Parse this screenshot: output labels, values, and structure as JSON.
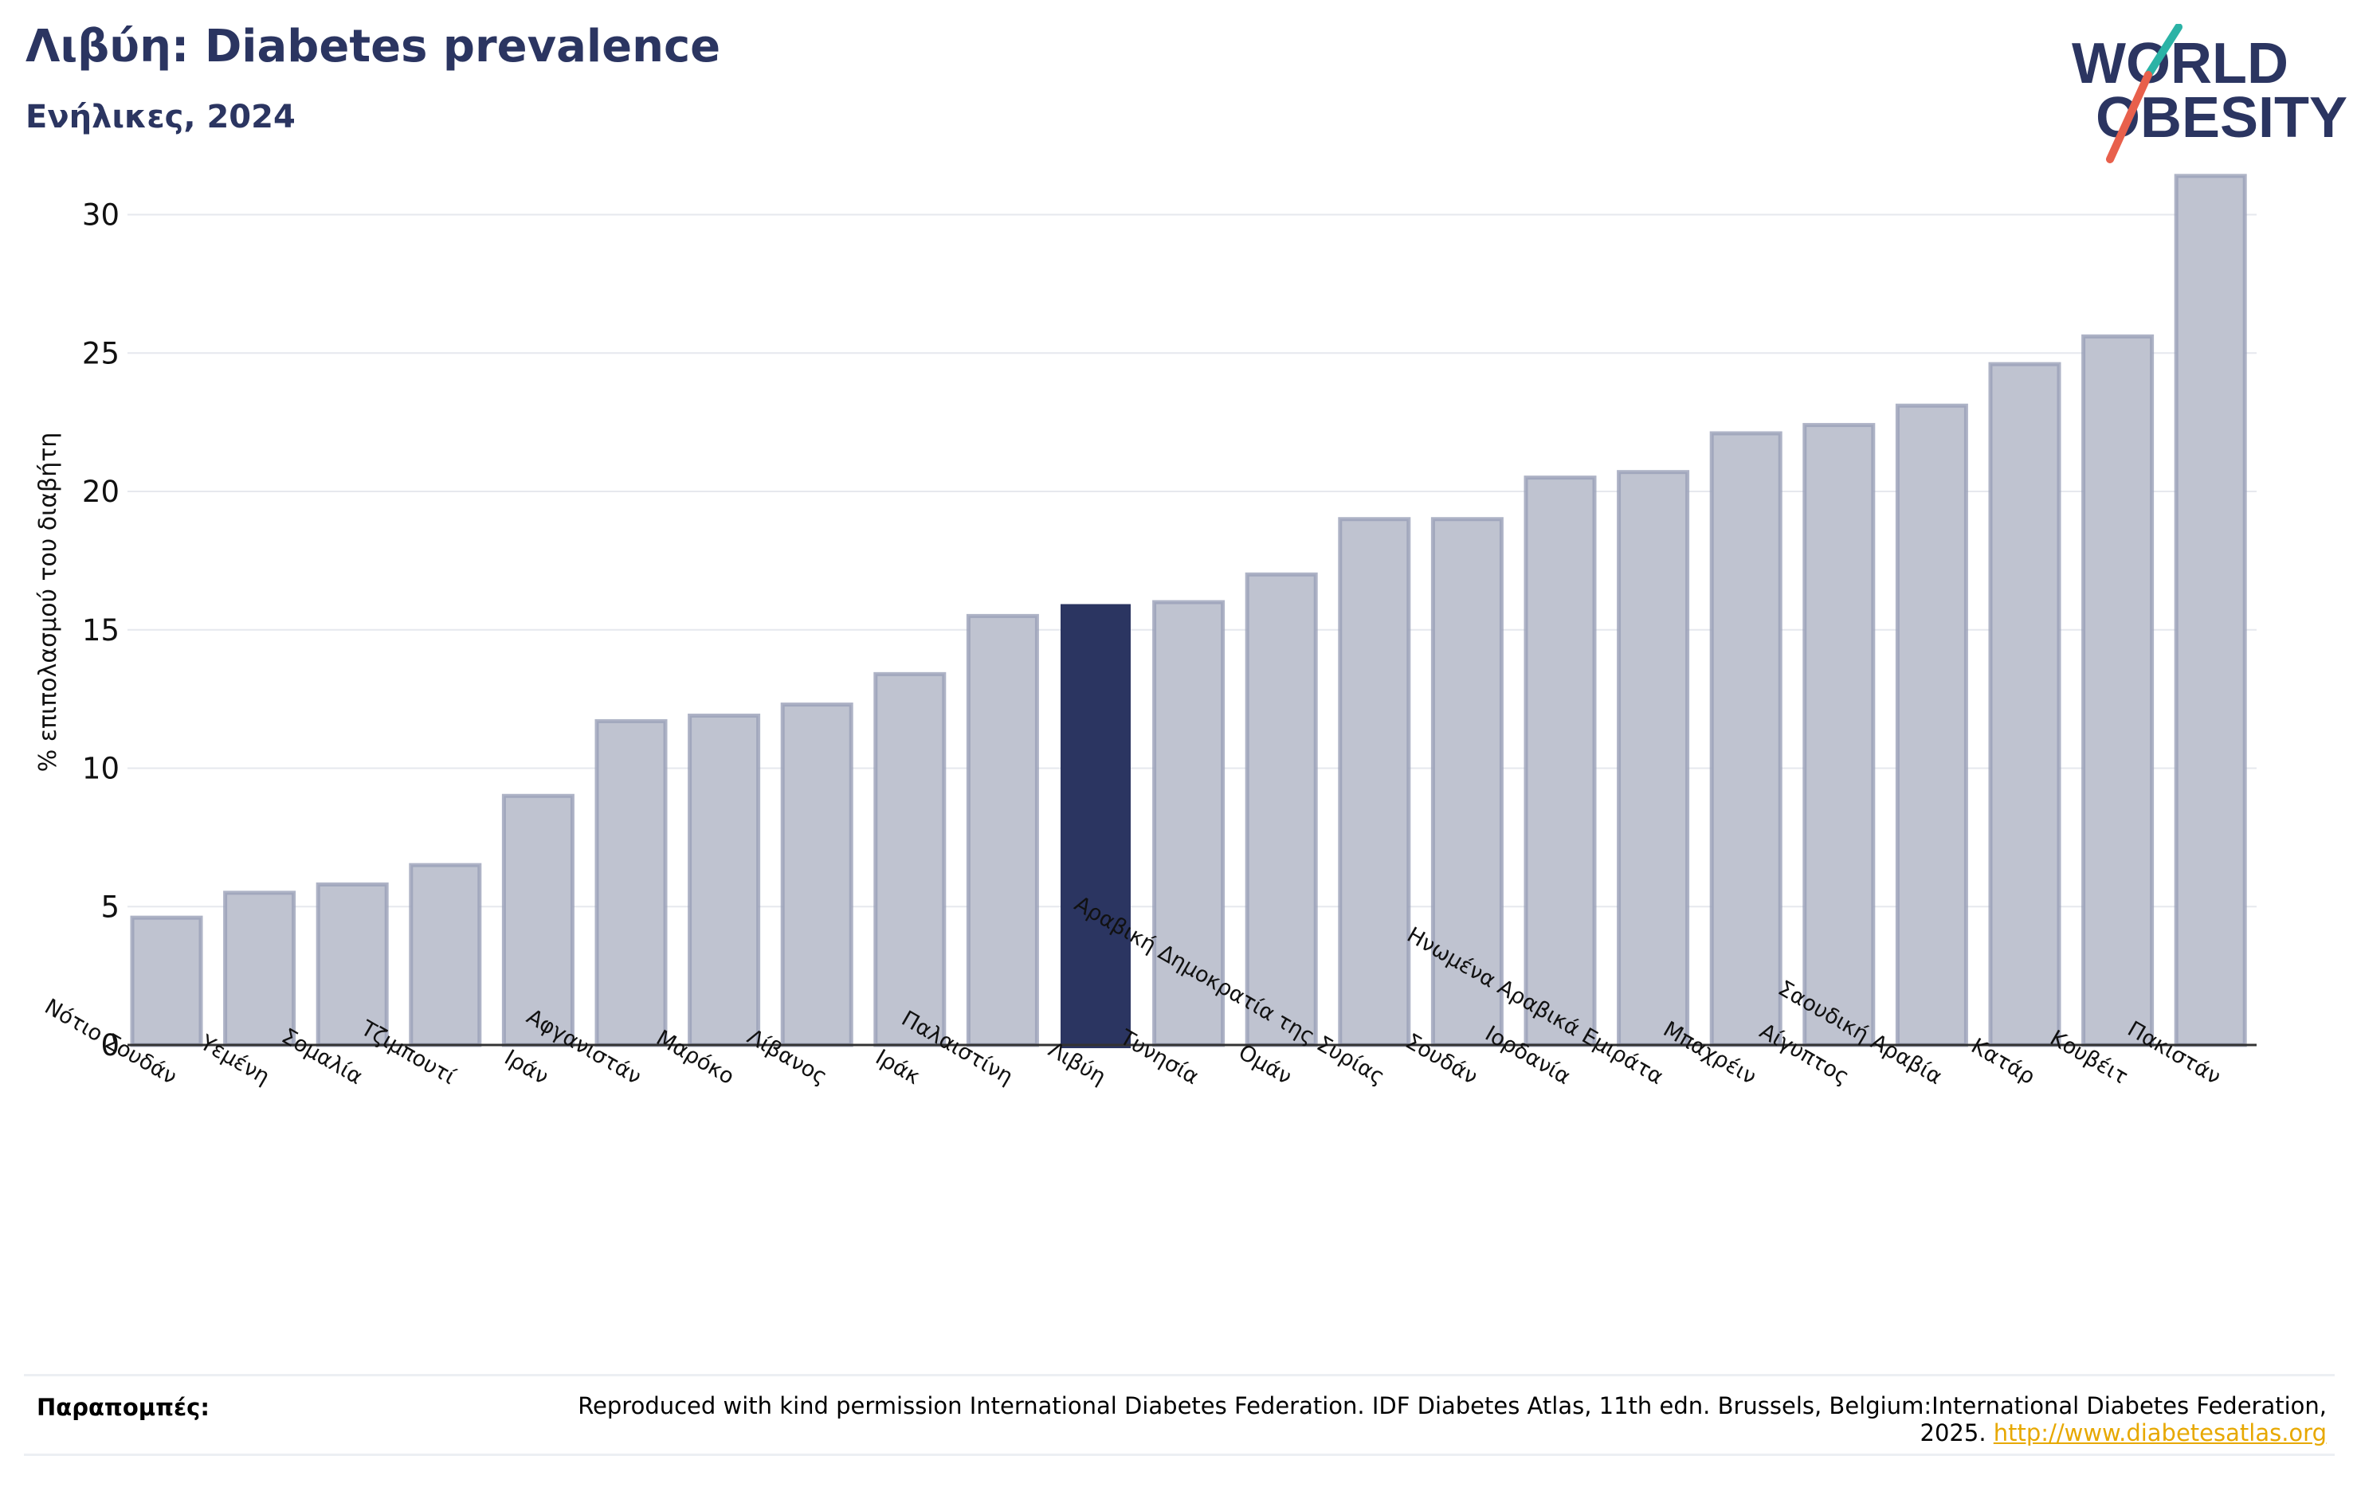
{
  "header": {
    "title": "Λιβύη: Diabetes prevalence",
    "subtitle": "Ενήλικες, 2024"
  },
  "logo": {
    "line1": "WORLD",
    "line2": "OBESITY",
    "text_color": "#2b3561",
    "slash_colors": [
      "#2bb3a6",
      "#e8604c"
    ]
  },
  "chart_data": {
    "type": "bar",
    "title": "Λιβύη: Diabetes prevalence",
    "subtitle": "Ενήλικες, 2024",
    "ylabel": "% επιπολασμού του διαβήτη",
    "xlabel": "",
    "ylim": [
      0,
      32
    ],
    "yticks": [
      0,
      5,
      10,
      15,
      20,
      25,
      30
    ],
    "grid": true,
    "highlight": "Λιβύη",
    "colors": {
      "bar": "#bfc3d0",
      "bar_edge": "#9aa0b8",
      "highlight": "#2b3561",
      "axis": "#333333"
    },
    "categories": [
      "Νότιο Σουδάν",
      "Υεμένη",
      "Σομαλία",
      "Τζιμπουτί",
      "Ιράν",
      "Αφγανιστάν",
      "Μαρόκο",
      "Λίβανος",
      "Ιράκ",
      "Παλαιστίνη",
      "Λιβύη",
      "Τυνησία",
      "Ομάν",
      "Αραβική Δημοκρατία της Συρίας",
      "Σουδάν",
      "Ιορδανία",
      "Ηνωμένα Αραβικά Εμιράτα",
      "Μπαχρέιν",
      "Αίγυπτος",
      "Σαουδική Αραβία",
      "Κατάρ",
      "Κουβέιτ",
      "Πακιστάν"
    ],
    "values": [
      4.6,
      5.5,
      5.8,
      6.5,
      9.0,
      11.7,
      11.9,
      12.3,
      13.4,
      15.5,
      15.9,
      16.0,
      17.0,
      19.0,
      19.0,
      20.5,
      20.7,
      22.1,
      22.4,
      23.1,
      24.6,
      25.6,
      31.4
    ]
  },
  "footer": {
    "label": "Παραπομπές:",
    "text": "Reproduced with kind permission International Diabetes Federation. IDF Diabetes Atlas, 11th edn. Brussels, Belgium:International Diabetes Federation, 2025.",
    "link": "http://www.diabetesatlas.org"
  }
}
